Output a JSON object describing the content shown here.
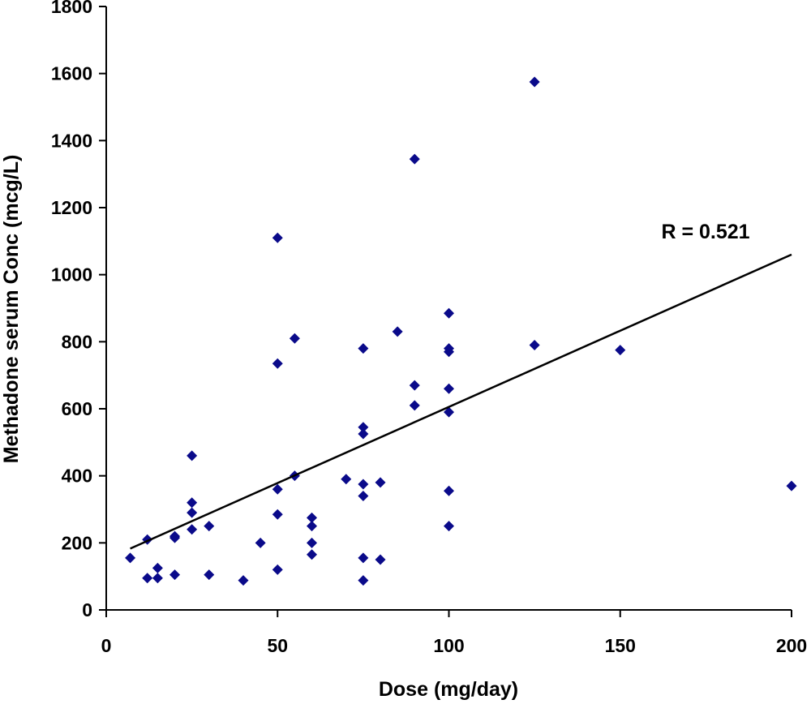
{
  "chart_data": {
    "type": "scatter",
    "title": "",
    "xlabel": "Dose (mg/day)",
    "ylabel": "Methadone serum Conc (mcg/L)",
    "xlim": [
      0,
      200
    ],
    "ylim": [
      0,
      1800
    ],
    "xticks": [
      0,
      50,
      100,
      150,
      200
    ],
    "yticks": [
      0,
      200,
      400,
      600,
      800,
      1000,
      1200,
      1400,
      1600,
      1800
    ],
    "grid": false,
    "legend": "none",
    "marker": "diamond",
    "marker_color": "#0a0a8a",
    "series": [
      {
        "points": [
          [
            7,
            155
          ],
          [
            12,
            95
          ],
          [
            12,
            210
          ],
          [
            15,
            95
          ],
          [
            15,
            125
          ],
          [
            20,
            105
          ],
          [
            20,
            220
          ],
          [
            20,
            215
          ],
          [
            25,
            460
          ],
          [
            25,
            320
          ],
          [
            25,
            290
          ],
          [
            25,
            240
          ],
          [
            30,
            105
          ],
          [
            30,
            250
          ],
          [
            40,
            88
          ],
          [
            45,
            200
          ],
          [
            50,
            120
          ],
          [
            50,
            1110
          ],
          [
            50,
            735
          ],
          [
            50,
            360
          ],
          [
            50,
            285
          ],
          [
            55,
            810
          ],
          [
            55,
            400
          ],
          [
            60,
            275
          ],
          [
            60,
            250
          ],
          [
            60,
            200
          ],
          [
            60,
            165
          ],
          [
            70,
            390
          ],
          [
            75,
            780
          ],
          [
            75,
            545
          ],
          [
            75,
            525
          ],
          [
            75,
            375
          ],
          [
            75,
            340
          ],
          [
            75,
            155
          ],
          [
            75,
            88
          ],
          [
            80,
            380
          ],
          [
            80,
            150
          ],
          [
            85,
            830
          ],
          [
            90,
            1345
          ],
          [
            90,
            670
          ],
          [
            90,
            610
          ],
          [
            100,
            885
          ],
          [
            100,
            780
          ],
          [
            100,
            770
          ],
          [
            100,
            660
          ],
          [
            100,
            590
          ],
          [
            100,
            355
          ],
          [
            100,
            250
          ],
          [
            125,
            1575
          ],
          [
            125,
            790
          ],
          [
            150,
            775
          ],
          [
            200,
            370
          ]
        ]
      }
    ],
    "trendline": {
      "x": [
        7,
        200
      ],
      "y": [
        183,
        1060
      ],
      "color": "#000000"
    },
    "annotation": {
      "text": "R = 0.521",
      "x": 162,
      "y": 1130
    }
  }
}
